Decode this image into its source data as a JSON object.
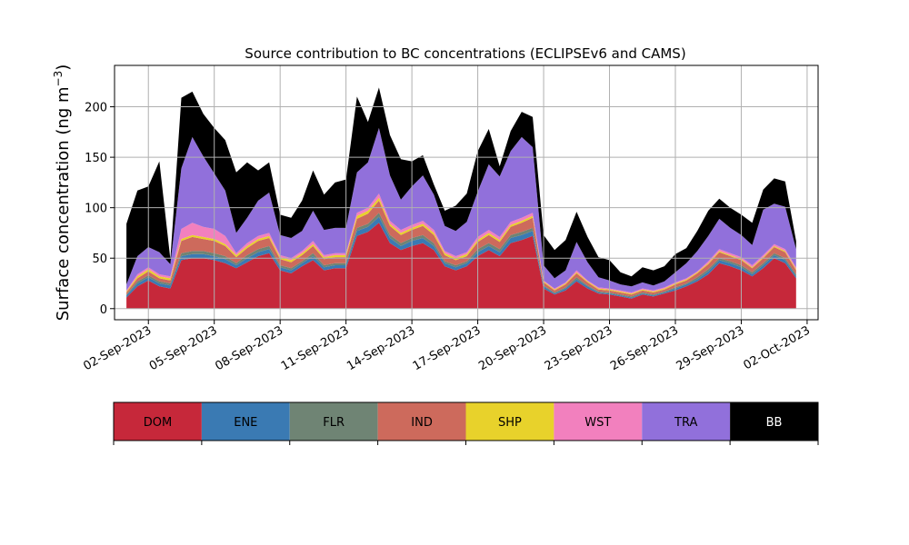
{
  "chart_data": {
    "type": "area",
    "stacked": true,
    "title": "Source contribution to BC concentrations (ECLIPSEv6 and CAMS)",
    "ylabel": "Surface concentration (ng m",
    "ylabel_unit_suffix": "−3",
    "ylabel_close": ")",
    "xlabel": "",
    "ylim": [
      -11,
      241
    ],
    "yticks": [
      0,
      50,
      100,
      150,
      200
    ],
    "xlim": [
      "2023-08-31T11:00",
      "2023-10-02T12:00"
    ],
    "xticks": [
      "02-Sep-2023",
      "05-Sep-2023",
      "08-Sep-2023",
      "11-Sep-2023",
      "14-Sep-2023",
      "17-Sep-2023",
      "20-Sep-2023",
      "23-Sep-2023",
      "26-Sep-2023",
      "29-Sep-2023",
      "02-Oct-2023"
    ],
    "grid": true,
    "series_colors": {
      "DOM": "#c6283a",
      "ENE": "#3a7ab3",
      "FLR": "#6f8474",
      "IND": "#cd6a5c",
      "SHP": "#e8d22b",
      "WST": "#f280be",
      "TRA": "#9170db",
      "BB": "#000000"
    },
    "legend": [
      "DOM",
      "ENE",
      "FLR",
      "IND",
      "SHP",
      "WST",
      "TRA",
      "BB"
    ],
    "legend_placement": "below",
    "dates": [
      "2023-09-01",
      "2023-09-01T12",
      "2023-09-02",
      "2023-09-02T12",
      "2023-09-03",
      "2023-09-03T12",
      "2023-09-04",
      "2023-09-04T12",
      "2023-09-05",
      "2023-09-05T12",
      "2023-09-06",
      "2023-09-06T12",
      "2023-09-07",
      "2023-09-07T12",
      "2023-09-08",
      "2023-09-08T12",
      "2023-09-09",
      "2023-09-09T12",
      "2023-09-10",
      "2023-09-10T12",
      "2023-09-11",
      "2023-09-11T12",
      "2023-09-12",
      "2023-09-12T12",
      "2023-09-13",
      "2023-09-13T12",
      "2023-09-14",
      "2023-09-14T12",
      "2023-09-15",
      "2023-09-15T12",
      "2023-09-16",
      "2023-09-16T12",
      "2023-09-17",
      "2023-09-17T12",
      "2023-09-18",
      "2023-09-18T12",
      "2023-09-19",
      "2023-09-19T12",
      "2023-09-20",
      "2023-09-20T12",
      "2023-09-21",
      "2023-09-21T12",
      "2023-09-22",
      "2023-09-22T12",
      "2023-09-23",
      "2023-09-23T12",
      "2023-09-24",
      "2023-09-24T12",
      "2023-09-25",
      "2023-09-25T12",
      "2023-09-26",
      "2023-09-26T12",
      "2023-09-27",
      "2023-09-27T12",
      "2023-09-28",
      "2023-09-28T12",
      "2023-09-29",
      "2023-09-29T12",
      "2023-09-30",
      "2023-09-30T12",
      "2023-10-01",
      "2023-10-01T12"
    ],
    "series": [
      {
        "name": "DOM",
        "values": [
          11,
          22,
          28,
          22,
          20,
          48,
          50,
          50,
          48,
          45,
          40,
          46,
          52,
          55,
          38,
          35,
          42,
          48,
          38,
          40,
          40,
          72,
          76,
          85,
          65,
          58,
          62,
          65,
          58,
          42,
          38,
          42,
          52,
          58,
          52,
          65,
          68,
          72,
          20,
          14,
          18,
          27,
          20,
          15,
          14,
          12,
          10,
          14,
          12,
          15,
          18,
          22,
          27,
          34,
          45,
          42,
          38,
          32,
          40,
          50,
          45,
          30
        ]
      },
      {
        "name": "ENE",
        "values": [
          2,
          3,
          3,
          3,
          3,
          4,
          4,
          4,
          4,
          4,
          3,
          4,
          4,
          4,
          3,
          3,
          3,
          4,
          3,
          3,
          3,
          5,
          5,
          6,
          5,
          4,
          5,
          5,
          4,
          3,
          3,
          3,
          4,
          4,
          4,
          5,
          5,
          5,
          2,
          1,
          2,
          2,
          2,
          1,
          1,
          1,
          1,
          1,
          1,
          1,
          2,
          2,
          2,
          3,
          3,
          3,
          3,
          2,
          3,
          3,
          3,
          2
        ]
      },
      {
        "name": "FLR",
        "values": [
          1,
          2,
          2,
          2,
          2,
          3,
          3,
          3,
          3,
          3,
          2,
          3,
          3,
          3,
          2,
          2,
          2,
          3,
          2,
          2,
          2,
          3,
          3,
          4,
          3,
          3,
          3,
          3,
          3,
          2,
          2,
          2,
          3,
          3,
          3,
          3,
          3,
          3,
          1,
          1,
          1,
          2,
          1,
          1,
          1,
          1,
          1,
          1,
          1,
          1,
          1,
          1,
          2,
          2,
          2,
          2,
          2,
          2,
          2,
          2,
          2,
          2
        ]
      },
      {
        "name": "IND",
        "values": [
          2,
          3,
          4,
          3,
          3,
          12,
          14,
          12,
          12,
          10,
          6,
          7,
          8,
          8,
          6,
          6,
          6,
          7,
          6,
          6,
          6,
          9,
          10,
          12,
          9,
          8,
          8,
          9,
          8,
          6,
          5,
          5,
          7,
          8,
          7,
          8,
          9,
          10,
          3,
          2,
          3,
          4,
          3,
          2,
          2,
          2,
          2,
          2,
          2,
          2,
          3,
          3,
          4,
          5,
          6,
          5,
          5,
          4,
          5,
          6,
          6,
          4
        ]
      },
      {
        "name": "SHP",
        "values": [
          1,
          2,
          2,
          2,
          2,
          2,
          2,
          2,
          2,
          2,
          2,
          2,
          2,
          2,
          2,
          2,
          2,
          2,
          2,
          2,
          2,
          3,
          3,
          3,
          2,
          2,
          2,
          2,
          2,
          2,
          2,
          2,
          2,
          2,
          2,
          2,
          2,
          2,
          1,
          1,
          1,
          1,
          1,
          1,
          1,
          1,
          1,
          1,
          1,
          1,
          1,
          1,
          1,
          1,
          1,
          1,
          1,
          1,
          1,
          1,
          1,
          1
        ]
      },
      {
        "name": "WST",
        "values": [
          1,
          2,
          2,
          2,
          2,
          10,
          12,
          10,
          10,
          8,
          2,
          3,
          3,
          3,
          2,
          2,
          2,
          3,
          2,
          2,
          2,
          3,
          3,
          4,
          3,
          3,
          3,
          3,
          3,
          2,
          2,
          2,
          3,
          3,
          3,
          3,
          3,
          3,
          1,
          1,
          1,
          2,
          1,
          1,
          1,
          1,
          1,
          1,
          1,
          1,
          1,
          1,
          1,
          2,
          2,
          2,
          2,
          2,
          2,
          2,
          2,
          2
        ]
      },
      {
        "name": "TRA",
        "values": [
          6,
          18,
          20,
          22,
          12,
          60,
          85,
          70,
          55,
          45,
          20,
          25,
          35,
          40,
          20,
          20,
          20,
          30,
          25,
          25,
          25,
          40,
          45,
          65,
          45,
          30,
          38,
          45,
          35,
          25,
          25,
          30,
          45,
          65,
          60,
          70,
          80,
          65,
          15,
          10,
          12,
          28,
          18,
          10,
          8,
          6,
          6,
          6,
          5,
          6,
          10,
          15,
          20,
          25,
          30,
          25,
          22,
          20,
          45,
          40,
          42,
          18
        ]
      },
      {
        "name": "BB",
        "values": [
          60,
          65,
          60,
          90,
          5,
          70,
          45,
          42,
          45,
          50,
          60,
          55,
          30,
          30,
          20,
          20,
          30,
          40,
          35,
          45,
          48,
          75,
          40,
          40,
          40,
          40,
          25,
          20,
          10,
          15,
          25,
          28,
          40,
          35,
          10,
          20,
          25,
          30,
          30,
          28,
          30,
          30,
          25,
          20,
          20,
          12,
          10,
          15,
          15,
          15,
          18,
          15,
          20,
          25,
          20,
          20,
          20,
          22,
          20,
          25,
          25,
          8
        ]
      }
    ]
  }
}
